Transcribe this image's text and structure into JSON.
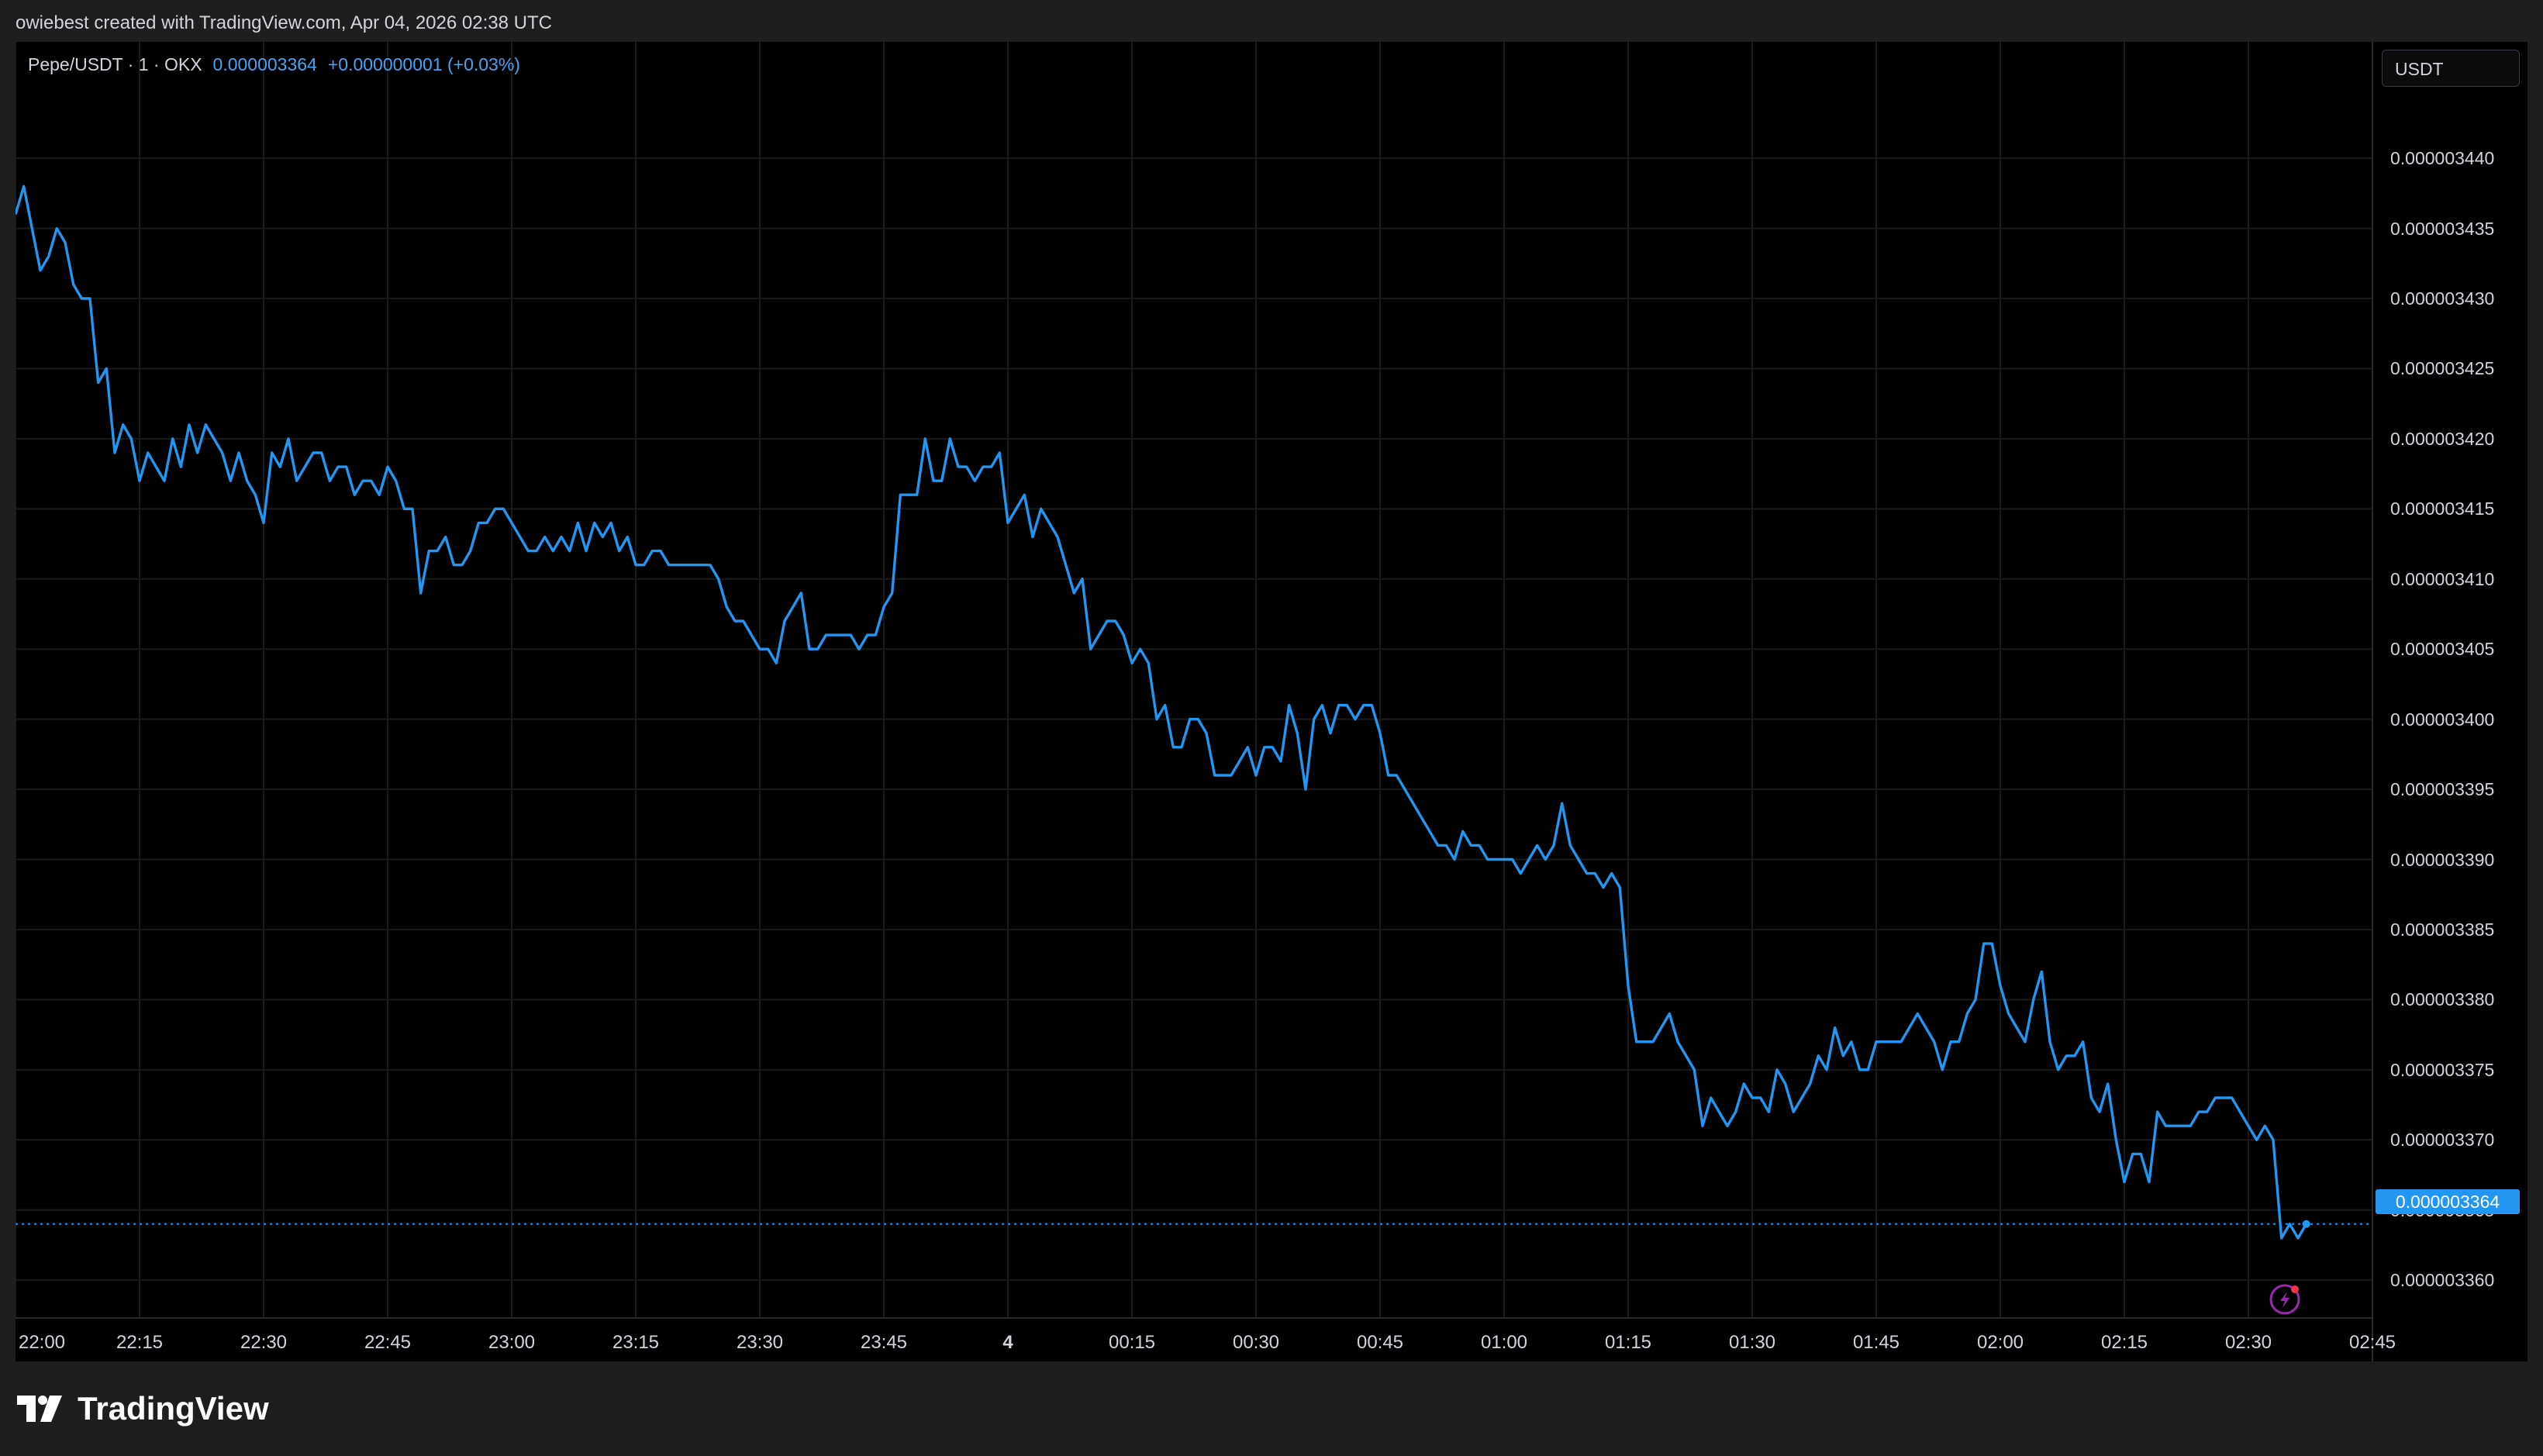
{
  "header": {
    "attribution": "owiebest created with TradingView.com, Apr 04, 2026 02:38 UTC"
  },
  "legend": {
    "symbol": "Pepe/USDT · 1 · OKX",
    "price": "0.000003364",
    "change": "+0.000000001 (+0.03%)"
  },
  "currency_button": "USDT",
  "current_price_label": "0.000003364",
  "brand": "TradingView",
  "colors": {
    "line": "#2196f3",
    "background": "#000000",
    "grid": "#1a1a1a",
    "price_tag": "#2196f3"
  },
  "chart_data": {
    "type": "line",
    "series": [
      {
        "values": [
          3.436e-06,
          3.438e-06,
          3.435e-06,
          3.432e-06,
          3.433e-06,
          3.435e-06,
          3.434e-06,
          3.431e-06,
          3.43e-06,
          3.43e-06,
          3.424e-06,
          3.425e-06,
          3.419e-06,
          3.421e-06,
          3.42e-06,
          3.417e-06,
          3.419e-06,
          3.418e-06,
          3.417e-06,
          3.42e-06,
          3.418e-06,
          3.421e-06,
          3.419e-06,
          3.421e-06,
          3.42e-06,
          3.419e-06,
          3.417e-06,
          3.419e-06,
          3.417e-06,
          3.416e-06,
          3.414e-06,
          3.419e-06,
          3.418e-06,
          3.42e-06,
          3.417e-06,
          3.418e-06,
          3.419e-06,
          3.419e-06,
          3.417e-06,
          3.418e-06,
          3.418e-06,
          3.416e-06,
          3.417e-06,
          3.417e-06,
          3.416e-06,
          3.418e-06,
          3.417e-06,
          3.415e-06,
          3.415e-06,
          3.409e-06,
          3.412e-06,
          3.412e-06,
          3.413e-06,
          3.411e-06,
          3.411e-06,
          3.412e-06,
          3.414e-06,
          3.414e-06,
          3.415e-06,
          3.415e-06,
          3.414e-06,
          3.413e-06,
          3.412e-06,
          3.412e-06,
          3.413e-06,
          3.412e-06,
          3.413e-06,
          3.412e-06,
          3.414e-06,
          3.412e-06,
          3.414e-06,
          3.413e-06,
          3.414e-06,
          3.412e-06,
          3.413e-06,
          3.411e-06,
          3.411e-06,
          3.412e-06,
          3.412e-06,
          3.411e-06,
          3.411e-06,
          3.411e-06,
          3.411e-06,
          3.411e-06,
          3.411e-06,
          3.41e-06,
          3.408e-06,
          3.407e-06,
          3.407e-06,
          3.406e-06,
          3.405e-06,
          3.405e-06,
          3.404e-06,
          3.407e-06,
          3.408e-06,
          3.409e-06,
          3.405e-06,
          3.405e-06,
          3.406e-06,
          3.406e-06,
          3.406e-06,
          3.406e-06,
          3.405e-06,
          3.406e-06,
          3.406e-06,
          3.408e-06,
          3.409e-06,
          3.416e-06,
          3.416e-06,
          3.416e-06,
          3.42e-06,
          3.417e-06,
          3.417e-06,
          3.42e-06,
          3.418e-06,
          3.418e-06,
          3.417e-06,
          3.418e-06,
          3.418e-06,
          3.419e-06,
          3.414e-06,
          3.415e-06,
          3.416e-06,
          3.413e-06,
          3.415e-06,
          3.414e-06,
          3.413e-06,
          3.411e-06,
          3.409e-06,
          3.41e-06,
          3.405e-06,
          3.406e-06,
          3.407e-06,
          3.407e-06,
          3.406e-06,
          3.404e-06,
          3.405e-06,
          3.404e-06,
          3.4e-06,
          3.401e-06,
          3.398e-06,
          3.398e-06,
          3.4e-06,
          3.4e-06,
          3.399e-06,
          3.396e-06,
          3.396e-06,
          3.396e-06,
          3.397e-06,
          3.398e-06,
          3.396e-06,
          3.398e-06,
          3.398e-06,
          3.397e-06,
          3.401e-06,
          3.399e-06,
          3.395e-06,
          3.4e-06,
          3.401e-06,
          3.399e-06,
          3.401e-06,
          3.401e-06,
          3.4e-06,
          3.401e-06,
          3.401e-06,
          3.399e-06,
          3.396e-06,
          3.396e-06,
          3.395e-06,
          3.394e-06,
          3.393e-06,
          3.392e-06,
          3.391e-06,
          3.391e-06,
          3.39e-06,
          3.392e-06,
          3.391e-06,
          3.391e-06,
          3.39e-06,
          3.39e-06,
          3.39e-06,
          3.39e-06,
          3.389e-06,
          3.39e-06,
          3.391e-06,
          3.39e-06,
          3.391e-06,
          3.394e-06,
          3.391e-06,
          3.39e-06,
          3.389e-06,
          3.389e-06,
          3.388e-06,
          3.389e-06,
          3.388e-06,
          3.381e-06,
          3.377e-06,
          3.377e-06,
          3.377e-06,
          3.378e-06,
          3.379e-06,
          3.377e-06,
          3.376e-06,
          3.375e-06,
          3.371e-06,
          3.373e-06,
          3.372e-06,
          3.371e-06,
          3.372e-06,
          3.374e-06,
          3.373e-06,
          3.373e-06,
          3.372e-06,
          3.375e-06,
          3.374e-06,
          3.372e-06,
          3.373e-06,
          3.374e-06,
          3.376e-06,
          3.375e-06,
          3.378e-06,
          3.376e-06,
          3.377e-06,
          3.375e-06,
          3.375e-06,
          3.377e-06,
          3.377e-06,
          3.377e-06,
          3.377e-06,
          3.378e-06,
          3.379e-06,
          3.378e-06,
          3.377e-06,
          3.375e-06,
          3.377e-06,
          3.377e-06,
          3.379e-06,
          3.38e-06,
          3.384e-06,
          3.384e-06,
          3.381e-06,
          3.379e-06,
          3.378e-06,
          3.377e-06,
          3.38e-06,
          3.382e-06,
          3.377e-06,
          3.375e-06,
          3.376e-06,
          3.376e-06,
          3.377e-06,
          3.373e-06,
          3.372e-06,
          3.374e-06,
          3.37e-06,
          3.367e-06,
          3.369e-06,
          3.369e-06,
          3.367e-06,
          3.372e-06,
          3.371e-06,
          3.371e-06,
          3.371e-06,
          3.371e-06,
          3.372e-06,
          3.372e-06,
          3.373e-06,
          3.373e-06,
          3.373e-06,
          3.372e-06,
          3.371e-06,
          3.37e-06,
          3.371e-06,
          3.37e-06,
          3.363e-06,
          3.364e-06,
          3.363e-06,
          3.364e-06
        ]
      }
    ],
    "x_start": "22:00",
    "x_step_minutes": 1,
    "x_ticks": [
      "22:00",
      "22:15",
      "22:30",
      "22:45",
      "23:00",
      "23:15",
      "23:30",
      "23:45",
      "4",
      "00:15",
      "00:30",
      "00:45",
      "01:00",
      "01:15",
      "01:30",
      "01:45",
      "02:00",
      "02:15",
      "02:30",
      "02:45"
    ],
    "y_ticks": [
      "0.000003440",
      "0.000003435",
      "0.000003430",
      "0.000003425",
      "0.000003420",
      "0.000003415",
      "0.000003410",
      "0.000003405",
      "0.000003400",
      "0.000003395",
      "0.000003390",
      "0.000003385",
      "0.000003380",
      "0.000003375",
      "0.000003370",
      "0.000003365",
      "0.000003360"
    ],
    "ylim": [
      3.3573e-06,
      3.4483e-06
    ],
    "xlim": [
      "22:00",
      "02:49"
    ],
    "grid": true,
    "current_value": 3.364e-06
  }
}
